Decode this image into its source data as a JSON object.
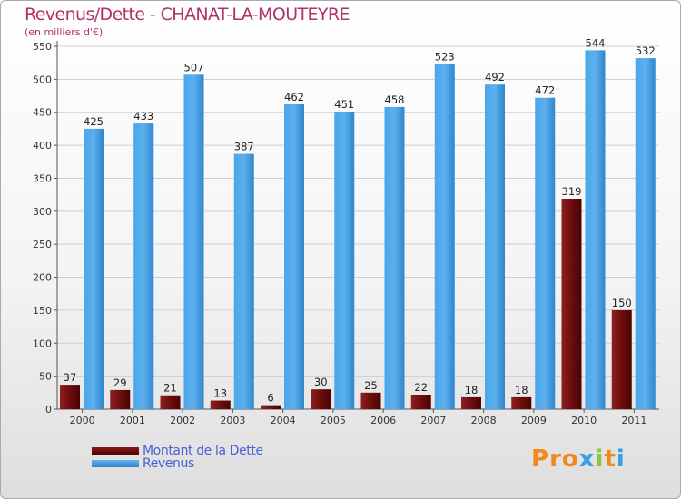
{
  "title": "Revenus/Dette - CHANAT-LA-MOUTEYRE",
  "subtitle": "(en milliers d'€)",
  "logo_text": "Proxiti",
  "colors": {
    "dette": "#6b0a0a",
    "revenus": "#3f9be0",
    "title": "#b0306a",
    "legend_text": "#4a5fd6",
    "logo": [
      "#f08a1c",
      "#f08a1c",
      "#f08a1c",
      "#3aa0e0",
      "#8cc63f",
      "#f08a1c",
      "#3aa0e0"
    ]
  },
  "chart_data": {
    "type": "bar",
    "title": "Revenus/Dette - CHANAT-LA-MOUTEYRE",
    "subtitle": "(en milliers d'€)",
    "categories": [
      "2000",
      "2001",
      "2002",
      "2003",
      "2004",
      "2005",
      "2006",
      "2007",
      "2008",
      "2009",
      "2010",
      "2011"
    ],
    "series": [
      {
        "name": "Montant de la Dette",
        "color": "#6b0a0a",
        "values": [
          37,
          29,
          21,
          13,
          6,
          30,
          25,
          22,
          18,
          18,
          319,
          150
        ]
      },
      {
        "name": "Revenus",
        "color": "#3f9be0",
        "values": [
          425,
          433,
          507,
          387,
          462,
          451,
          458,
          523,
          492,
          472,
          544,
          532
        ]
      }
    ],
    "ylim": [
      0,
      550
    ],
    "yticks": [
      0,
      50,
      100,
      150,
      200,
      250,
      300,
      350,
      400,
      450,
      500,
      550
    ],
    "grid": true,
    "legend_position": "bottom-left"
  }
}
